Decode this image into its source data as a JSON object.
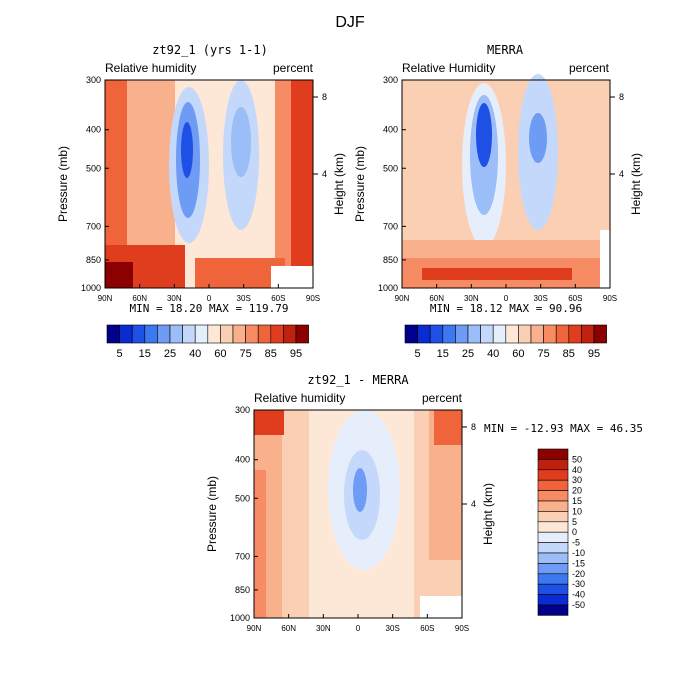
{
  "figure": {
    "title": "DJF"
  },
  "chart_data": [
    {
      "type": "heatmap",
      "title": "zt92_1 (yrs 1-1)",
      "left_label": "Relative humidity",
      "right_label": "percent",
      "ylabel": "Pressure (mb)",
      "ylabel_right": "Height (km)",
      "y_ticks": [
        "300",
        "400",
        "500",
        "700",
        "850",
        "1000"
      ],
      "y_tick_values": [
        300,
        400,
        500,
        700,
        850,
        1000
      ],
      "y_right_ticks": [
        "8",
        "4"
      ],
      "x_ticks": [
        "90N",
        "60N",
        "30N",
        "0",
        "30S",
        "60S",
        "90S"
      ],
      "ylim": [
        1000,
        300
      ],
      "y_scale": "log",
      "stats": "MIN =   18.20   MAX = 119.79",
      "colorbar": {
        "orientation": "horizontal",
        "labels": [
          "5",
          "15",
          "25",
          "40",
          "60",
          "75",
          "85",
          "95"
        ],
        "colors": [
          "#00008b",
          "#0a2ad2",
          "#1e50e6",
          "#3c78f0",
          "#6e9cf5",
          "#9bbdf8",
          "#c3d8fa",
          "#e6eefb",
          "#fde8d8",
          "#fbcfb3",
          "#f9b08c",
          "#f78c64",
          "#f0643c",
          "#e03c1e",
          "#c0200e",
          "#8b0000"
        ]
      }
    },
    {
      "type": "heatmap",
      "title": "MERRA",
      "left_label": "Relative Humidity",
      "right_label": "percent",
      "ylabel": "Pressure (mb)",
      "ylabel_right": "Height (km)",
      "y_ticks": [
        "300",
        "400",
        "500",
        "700",
        "850",
        "1000"
      ],
      "y_tick_values": [
        300,
        400,
        500,
        700,
        850,
        1000
      ],
      "y_right_ticks": [
        "8",
        "4"
      ],
      "x_ticks": [
        "90N",
        "60N",
        "30N",
        "0",
        "30S",
        "60S",
        "90S"
      ],
      "ylim": [
        1000,
        300
      ],
      "y_scale": "log",
      "stats": "MIN =   18.12   MAX =   90.96",
      "colorbar": {
        "orientation": "horizontal",
        "labels": [
          "5",
          "15",
          "25",
          "40",
          "60",
          "75",
          "85",
          "95"
        ],
        "colors": [
          "#00008b",
          "#0a2ad2",
          "#1e50e6",
          "#3c78f0",
          "#6e9cf5",
          "#9bbdf8",
          "#c3d8fa",
          "#e6eefb",
          "#fde8d8",
          "#fbcfb3",
          "#f9b08c",
          "#f78c64",
          "#f0643c",
          "#e03c1e",
          "#c0200e",
          "#8b0000"
        ]
      }
    },
    {
      "type": "heatmap",
      "title": "zt92_1 - MERRA",
      "left_label": "Relative humidity",
      "right_label": "percent",
      "ylabel": "Pressure (mb)",
      "ylabel_right": "Height (km)",
      "y_ticks": [
        "300",
        "400",
        "500",
        "700",
        "850",
        "1000"
      ],
      "y_tick_values": [
        300,
        400,
        500,
        700,
        850,
        1000
      ],
      "y_right_ticks": [
        "8",
        "4"
      ],
      "x_ticks": [
        "90N",
        "60N",
        "30N",
        "0",
        "30S",
        "60S",
        "90S"
      ],
      "ylim": [
        1000,
        300
      ],
      "y_scale": "log",
      "stats": "MIN = -12.93   MAX =   46.35",
      "colorbar": {
        "orientation": "vertical",
        "labels": [
          "50",
          "40",
          "30",
          "20",
          "15",
          "10",
          "5",
          "0",
          "-5",
          "-10",
          "-15",
          "-20",
          "-30",
          "-40",
          "-50"
        ],
        "colors": [
          "#8b0000",
          "#c0200e",
          "#e03c1e",
          "#f0643c",
          "#f78c64",
          "#f9b08c",
          "#fbcfb3",
          "#fde8d8",
          "#e6eefb",
          "#c3d8fa",
          "#9bbdf8",
          "#6e9cf5",
          "#3c78f0",
          "#1e50e6",
          "#0a2ad2",
          "#00008b"
        ]
      }
    }
  ]
}
